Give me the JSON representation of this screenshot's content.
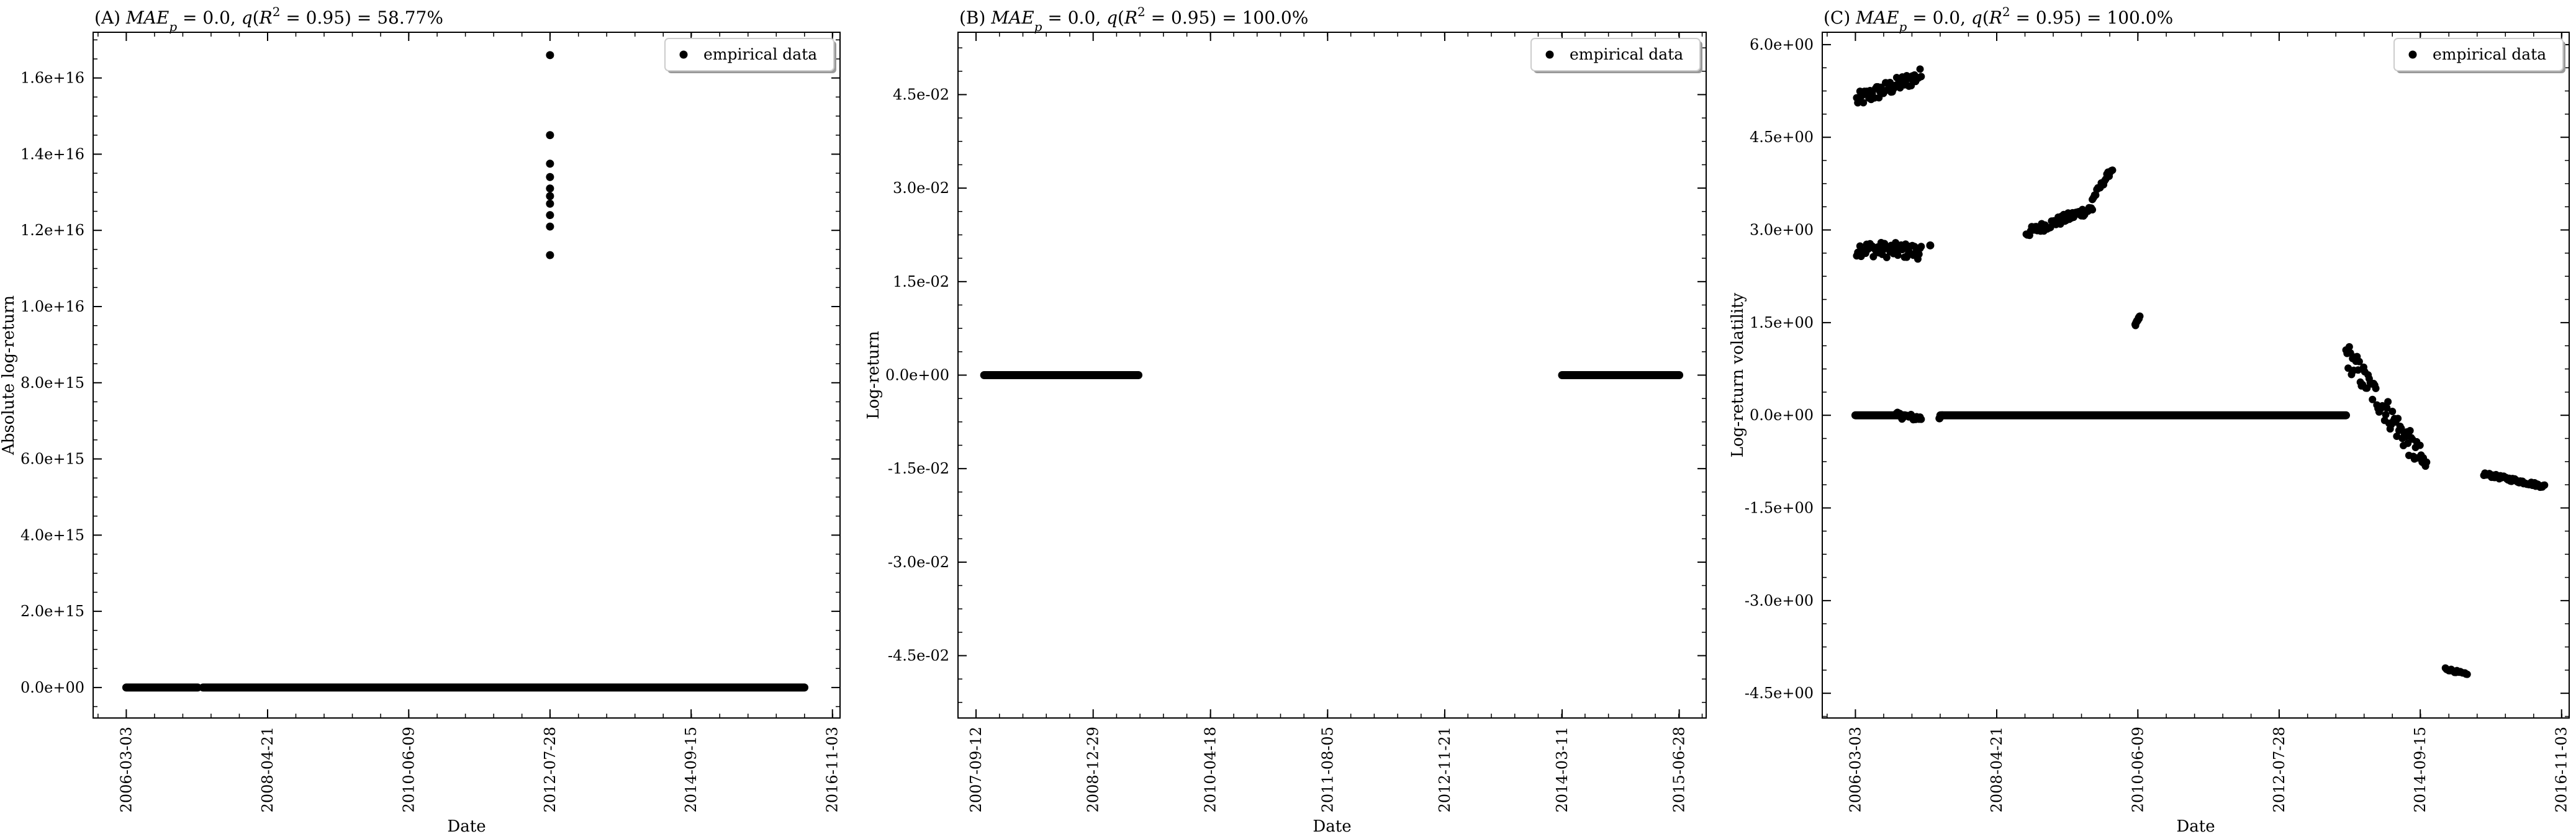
{
  "chart_data": [
    {
      "panel": "A",
      "type": "scatter",
      "title": "(A) MAE_p = 0.0, q(R² = 0.95) = 58.77%",
      "xlabel": "Date",
      "ylabel": "Absolute log-return",
      "xlim": [
        "2005-09-01",
        "2016-12-15"
      ],
      "ylim": [
        -800000000000000.0,
        1.72e+16
      ],
      "xticks": [
        "2006-03-03",
        "2008-04-21",
        "2010-06-09",
        "2012-07-28",
        "2014-09-15",
        "2016-11-03"
      ],
      "yticks": [
        0,
        2000000000000000.0,
        4000000000000000.0,
        6000000000000000.0,
        8000000000000000.0,
        1e+16,
        1.2e+16,
        1.4e+16,
        1.6e+16
      ],
      "ytick_labels": [
        "0.0e+00",
        "2.0e+15",
        "4.0e+15",
        "6.0e+15",
        "8.0e+15",
        "1.0e+16",
        "1.2e+16",
        "1.4e+16",
        "1.6e+16"
      ],
      "legend": "top-right",
      "series": [
        {
          "name": "empirical data",
          "segments": [
            {
              "start": "2006-03-03",
              "end": "2007-04-01",
              "y": 0
            },
            {
              "start": "2007-05-01",
              "end": "2016-06-01",
              "y": 0
            }
          ],
          "points": [
            [
              "2012-07-28",
              1.66e+16
            ],
            [
              "2012-07-28",
              1.45e+16
            ],
            [
              "2012-07-28",
              1.375e+16
            ],
            [
              "2012-07-28",
              1.34e+16
            ],
            [
              "2012-07-28",
              1.31e+16
            ],
            [
              "2012-07-28",
              1.29e+16
            ],
            [
              "2012-07-28",
              1.27e+16
            ],
            [
              "2012-07-28",
              1.24e+16
            ],
            [
              "2012-07-28",
              1.21e+16
            ],
            [
              "2012-07-28",
              1.135e+16
            ]
          ]
        }
      ]
    },
    {
      "panel": "B",
      "type": "scatter",
      "title": "(B) MAE_p = 0.0, q(R² = 0.95) = 100.0%",
      "xlabel": "Date",
      "ylabel": "Log-return",
      "xlim": [
        "2007-07-01",
        "2015-10-15"
      ],
      "ylim": [
        -0.055,
        0.055
      ],
      "xticks": [
        "2007-09-12",
        "2008-12-29",
        "2010-04-18",
        "2011-08-05",
        "2012-11-21",
        "2014-03-11",
        "2015-06-28"
      ],
      "yticks": [
        -0.045,
        -0.03,
        -0.015,
        0,
        0.015,
        0.03,
        0.045
      ],
      "ytick_labels": [
        "-4.5e-02",
        "-3.0e-02",
        "-1.5e-02",
        "0.0e+00",
        "1.5e-02",
        "3.0e-02",
        "4.5e-02"
      ],
      "legend": "top-right",
      "series": [
        {
          "name": "empirical data",
          "segments": [
            {
              "start": "2007-10-15",
              "end": "2009-06-30",
              "y": 0
            },
            {
              "start": "2014-03-11",
              "end": "2015-06-28",
              "y": 0
            }
          ],
          "points": []
        }
      ]
    },
    {
      "panel": "C",
      "type": "scatter",
      "title": "(C) MAE_p = 0.0, q(R² = 0.95) = 100.0%",
      "xlabel": "Date",
      "ylabel": "Log-return volatility",
      "xlim": [
        "2005-09-01",
        "2016-12-15"
      ],
      "ylim": [
        -4.9,
        6.2
      ],
      "xticks": [
        "2006-03-03",
        "2008-04-21",
        "2010-06-09",
        "2012-07-28",
        "2014-09-15",
        "2016-11-03"
      ],
      "yticks": [
        -4.5,
        -3.0,
        -1.5,
        0,
        1.5,
        3.0,
        4.5,
        6.0
      ],
      "ytick_labels": [
        "-4.5e+00",
        "-3.0e+00",
        "-1.5e+00",
        "0.0e+00",
        "1.5e+00",
        "3.0e+00",
        "4.5e+00",
        "6.0e+00"
      ],
      "legend": "top-right",
      "series": [
        {
          "name": "empirical data",
          "segments": [
            {
              "start": "2006-03-03",
              "end": "2006-12-01",
              "y": 0
            },
            {
              "start": "2007-06-15",
              "end": "2013-08-01",
              "y": 0
            }
          ],
          "clusters": [
            {
              "start": "2006-03-10",
              "end": "2007-03-01",
              "y_start": 5.1,
              "y_end": 5.5,
              "spread": 0.25
            },
            {
              "start": "2006-03-10",
              "end": "2007-03-01",
              "y_start": 2.7,
              "y_end": 2.65,
              "spread": 0.25
            },
            {
              "start": "2006-10-15",
              "end": "2007-03-01",
              "y_start": 0.0,
              "y_end": -0.05,
              "spread": 0.1
            },
            {
              "start": "2008-10-01",
              "end": "2009-10-01",
              "y_start": 2.95,
              "y_end": 3.35,
              "spread": 0.15
            },
            {
              "start": "2009-10-01",
              "end": "2010-01-20",
              "y_start": 3.5,
              "y_end": 4.0,
              "spread": 0.1
            },
            {
              "start": "2010-05-25",
              "end": "2010-06-20",
              "y_start": 1.45,
              "y_end": 1.6,
              "spread": 0.05
            },
            {
              "start": "2013-08-01",
              "end": "2014-10-20",
              "y_start": 1.0,
              "y_end": -0.85,
              "spread": 0.45
            },
            {
              "start": "2015-02-01",
              "end": "2015-06-01",
              "y_start": -4.1,
              "y_end": -4.2,
              "spread": 0.04
            },
            {
              "start": "2015-09-01",
              "end": "2016-08-01",
              "y_start": -0.95,
              "y_end": -1.15,
              "spread": 0.06
            }
          ],
          "points": [
            [
              "2007-04-20",
              2.75
            ],
            [
              "2007-06-10",
              -0.05
            ],
            [
              "2007-06-25",
              0.0
            ]
          ]
        }
      ]
    }
  ]
}
